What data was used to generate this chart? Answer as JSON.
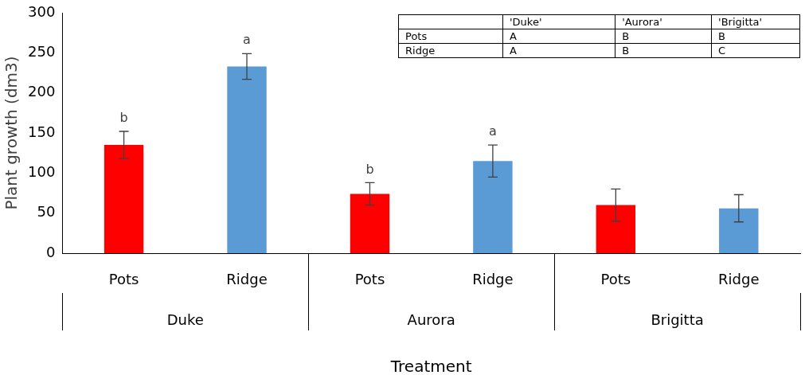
{
  "chart_data": {
    "type": "bar",
    "xlabel": "Treatment",
    "ylabel": "Plant growth (dm3)",
    "categories": [
      "Duke",
      "Aurora",
      "Brigitta"
    ],
    "series": [
      {
        "name": "Pots",
        "color": "#ff0000",
        "values": [
          135,
          74,
          60
        ],
        "errors": [
          17,
          14,
          20
        ],
        "value_labels": [
          "b",
          "b",
          null
        ]
      },
      {
        "name": "Ridge",
        "color": "#5b9bd5",
        "values": [
          233,
          115,
          56
        ],
        "errors": [
          16,
          20,
          17
        ],
        "value_labels": [
          "a",
          "a",
          null
        ]
      }
    ],
    "ylim": [
      0,
      300
    ],
    "yticks": [
      0,
      50,
      100,
      150,
      200,
      250,
      300
    ],
    "grid": false,
    "legend": false,
    "annotations": [
      "'Duke'",
      "'Aurora'",
      "'Brigitta'",
      "Pots",
      "A",
      "B",
      "B",
      "Ridge",
      "A",
      "B",
      "C"
    ]
  }
}
